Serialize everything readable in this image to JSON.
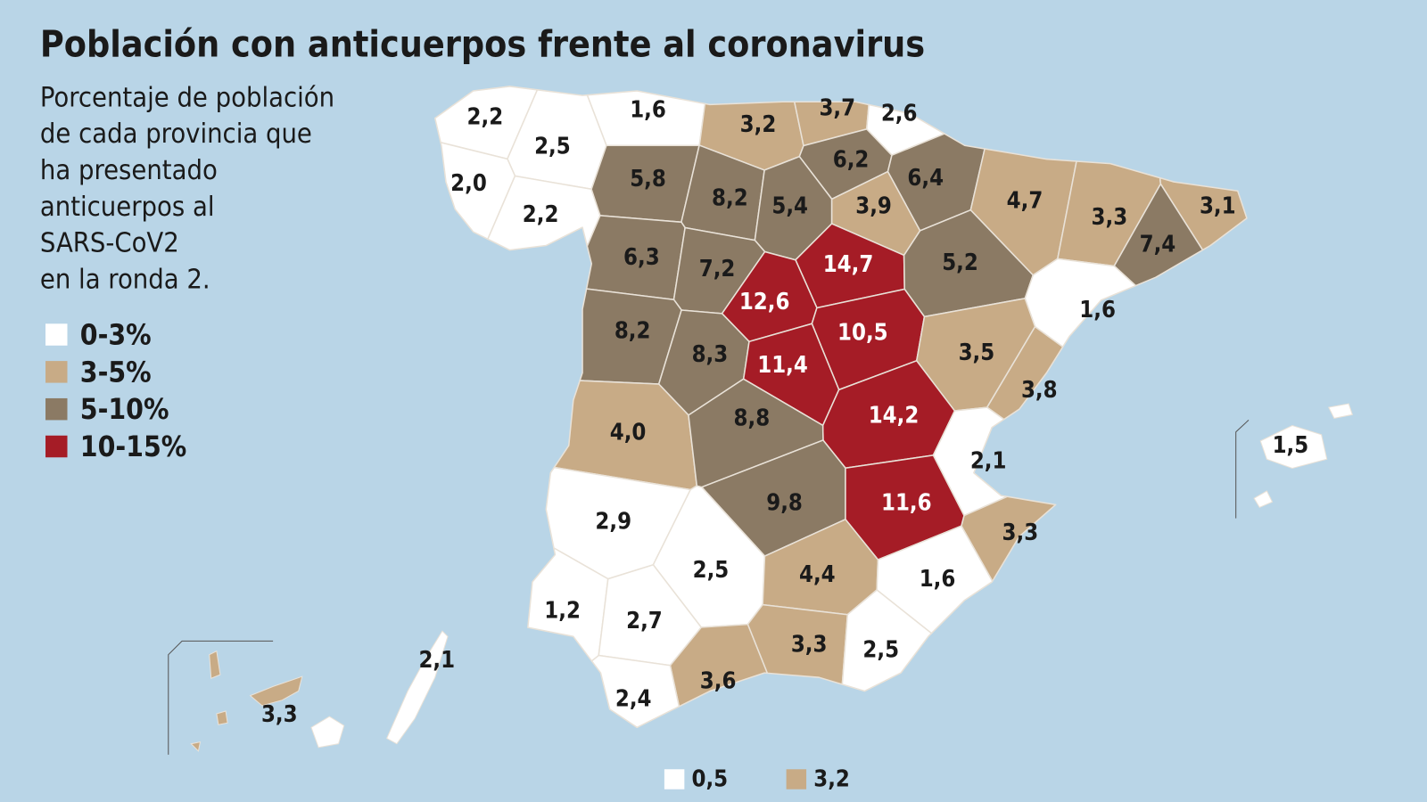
{
  "chart_data": {
    "type": "choropleth",
    "title": "Población con anticuerpos frente al coronavirus",
    "subtitle": [
      "Porcentaje de población",
      "de cada provincia que",
      "ha presentado",
      "anticuerpos al",
      "SARS-CoV2",
      "en la ronda 2."
    ],
    "legend": [
      {
        "label": "0-3%",
        "range": [
          0,
          3
        ],
        "color": "#ffffff"
      },
      {
        "label": "3-5%",
        "range": [
          3,
          5
        ],
        "color": "#c8ab86"
      },
      {
        "label": "5-10%",
        "range": [
          5,
          10
        ],
        "color": "#8b7a64"
      },
      {
        "label": "10-15%",
        "range": [
          10,
          15
        ],
        "color": "#a51c26"
      }
    ],
    "values": [
      2.2,
      1.6,
      2.5,
      2.0,
      2.2,
      3.2,
      3.7,
      2.6,
      6.2,
      6.4,
      5.8,
      8.2,
      5.4,
      3.9,
      4.7,
      3.3,
      3.1,
      7.4,
      6.3,
      7.2,
      14.7,
      5.2,
      12.6,
      1.6,
      8.2,
      10.5,
      8.3,
      11.4,
      3.5,
      3.8,
      14.2,
      4.0,
      8.8,
      2.1,
      9.8,
      11.6,
      2.9,
      3.3,
      2.5,
      4.4,
      1.6,
      1.2,
      2.7,
      3.3,
      2.5,
      3.6,
      2.4,
      1.5,
      2.1,
      3.3,
      0.5,
      3.2
    ],
    "value_labels": [
      "2,2",
      "1,6",
      "2,5",
      "2,0",
      "2,2",
      "3,2",
      "3,7",
      "2,6",
      "6,2",
      "6,4",
      "5,8",
      "8,2",
      "5,4",
      "3,9",
      "4,7",
      "3,3",
      "3,1",
      "7,4",
      "6,3",
      "7,2",
      "14,7",
      "5,2",
      "12,6",
      "1,6",
      "8,2",
      "10,5",
      "8,3",
      "11,4",
      "3,5",
      "3,8",
      "14,2",
      "4,0",
      "8,8",
      "2,1",
      "9,8",
      "11,6",
      "2,9",
      "3,3",
      "2,5",
      "4,4",
      "1,6",
      "1,2",
      "2,7",
      "3,3",
      "2,5",
      "3,6",
      "2,4",
      "1,5",
      "2,1",
      "3,3",
      "0,5",
      "3,2"
    ]
  }
}
